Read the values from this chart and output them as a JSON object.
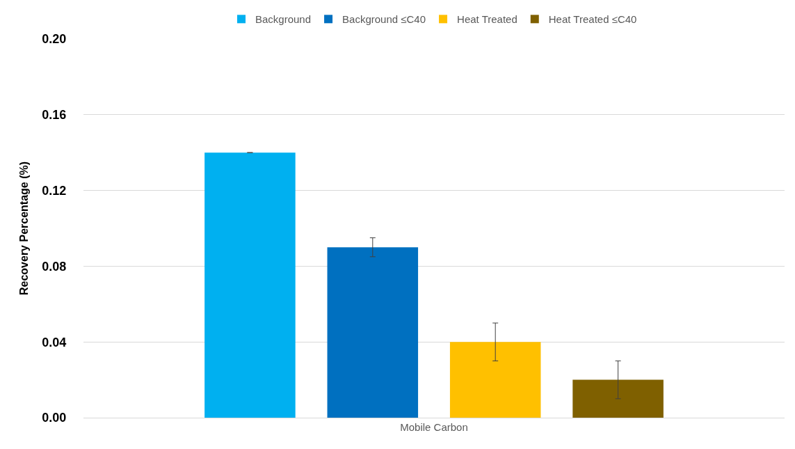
{
  "chart_data": {
    "type": "bar",
    "ylabel": "Recovery Percentage (%)",
    "categories": [
      "Mobile Carbon"
    ],
    "series": [
      {
        "name": "Background",
        "color": "#00b0f0",
        "values": [
          0.14
        ],
        "errors": [
          0
        ]
      },
      {
        "name": "Background ≤C40",
        "color": "#0070c0",
        "values": [
          0.09
        ],
        "errors": [
          0.005
        ]
      },
      {
        "name": "Heat Treated",
        "color": "#ffc000",
        "values": [
          0.04
        ],
        "errors": [
          0.01
        ]
      },
      {
        "name": "Heat Treated ≤C40",
        "color": "#7f6000",
        "values": [
          0.02
        ],
        "errors": [
          0.01
        ]
      }
    ],
    "ylim": [
      0,
      0.2
    ],
    "yticks": [
      {
        "value": 0,
        "label": "0.00"
      },
      {
        "value": 0.04,
        "label": "0.04"
      },
      {
        "value": 0.08,
        "label": "0.08"
      },
      {
        "value": 0.12,
        "label": "0.12"
      },
      {
        "value": 0.16,
        "label": "0.16"
      },
      {
        "value": 0.2,
        "label": "0.20"
      }
    ],
    "grid": "y",
    "legend": "top"
  }
}
